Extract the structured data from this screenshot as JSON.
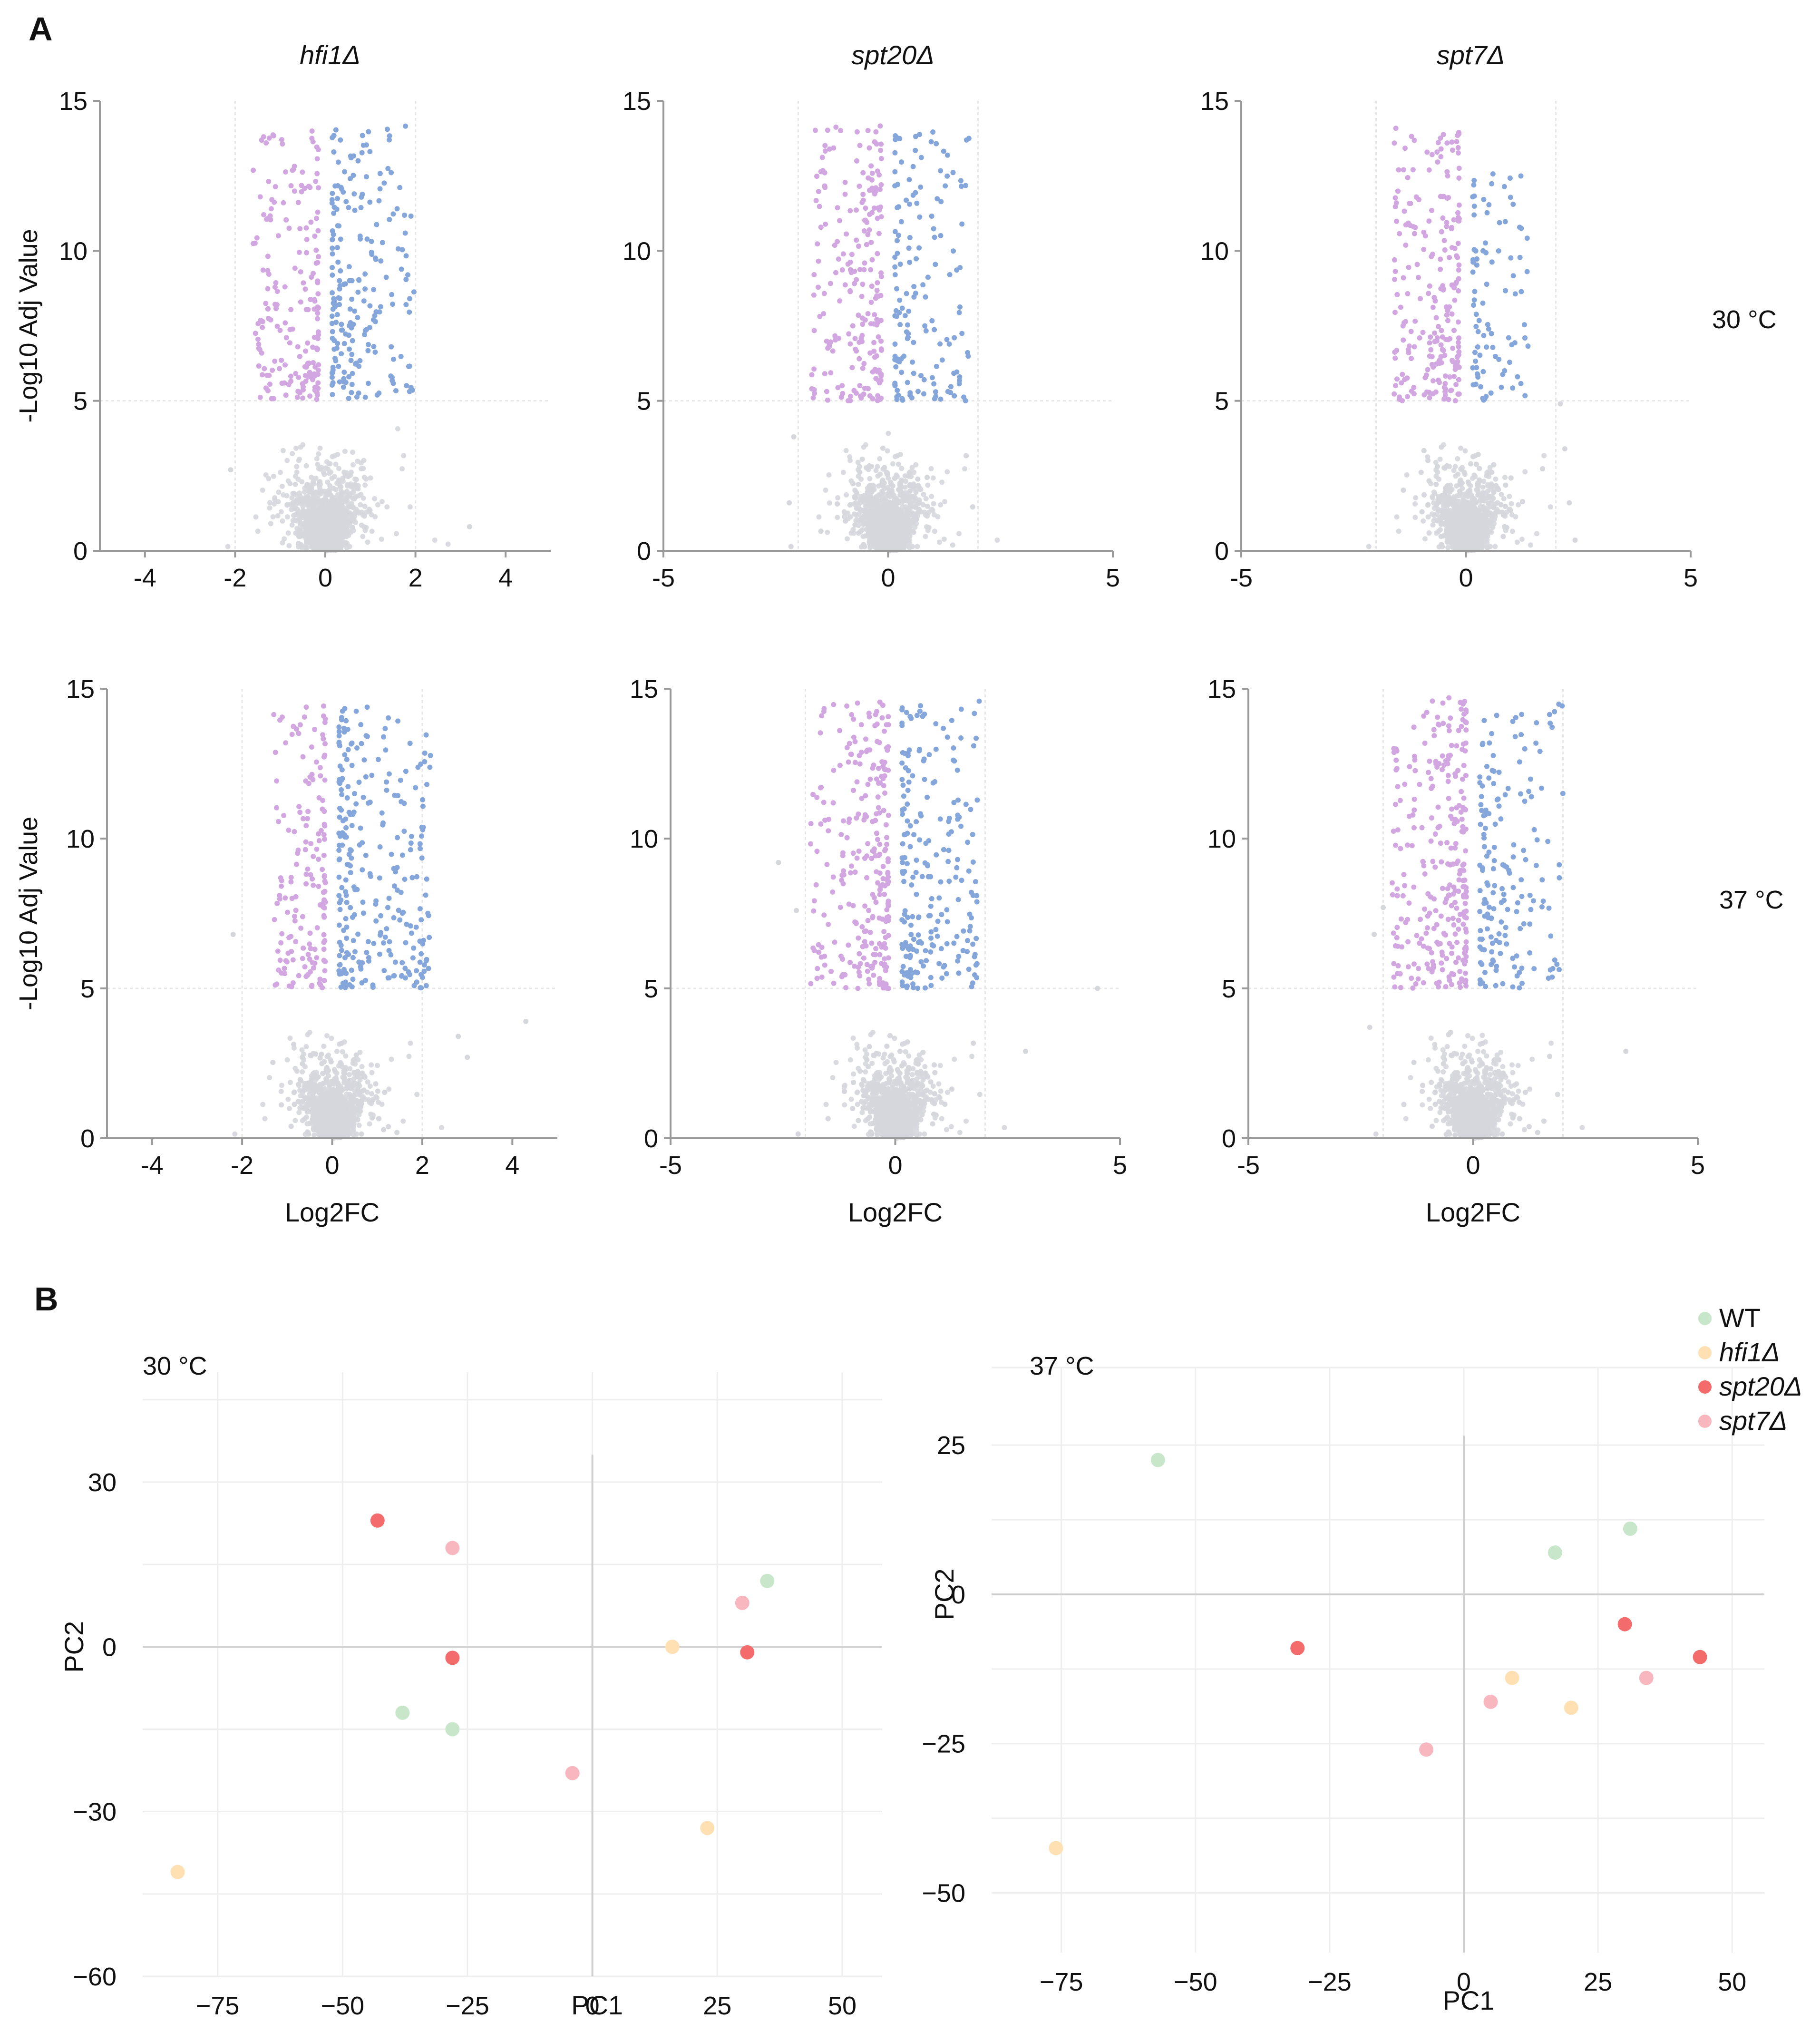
{
  "panel_labels": {
    "a": "A",
    "b": "B"
  },
  "conditions": {
    "row1": "30 °C",
    "row2": "37 °C"
  },
  "volcano_common": {
    "ylabel": "-Log10 Adj Value",
    "xlabel": "Log2FC",
    "ylim": [
      0,
      15
    ],
    "yticks": [
      "0",
      "5",
      "10",
      "15"
    ],
    "colors": {
      "down": "#d2a6e0",
      "up": "#85a6da",
      "ns": "#d6d7dd",
      "axis": "#9a9a9a",
      "grid": "#e6e6e6"
    }
  },
  "pca_common": {
    "xlabel": "PC1",
    "ylabel": "PC2",
    "legend": {
      "position": "top-right",
      "items": [
        {
          "name": "WT",
          "color": "#c8e6c9"
        },
        {
          "name": "hfi1Δ",
          "color": "#ffe0b2"
        },
        {
          "name": "spt20Δ",
          "color": "#f46b6b"
        },
        {
          "name": "spt7Δ",
          "color": "#f8b7bf"
        }
      ]
    }
  },
  "chart_data": [
    {
      "type": "scatter",
      "id": "volcano-hfi1-30",
      "title": "hfi1Δ",
      "condition": "30 °C",
      "xlabel": "",
      "ylabel": "-Log10 Adj Value",
      "xlim": [
        -5,
        5
      ],
      "ylim": [
        0,
        15
      ],
      "xticks": [
        "-4",
        "-2",
        "0",
        "2",
        "4"
      ],
      "xtick_values": [
        -4,
        -2,
        0,
        2,
        4
      ],
      "thresholds": {
        "log2fc": [
          -2,
          2
        ],
        "neglog10p": 5
      },
      "down": {
        "n": 190,
        "xmin": -1.6,
        "xmax": -0.15,
        "ymax": 14
      },
      "up": {
        "n": 210,
        "xmin": 0.15,
        "xmax": 2.0,
        "ymax": 14.2
      },
      "ns_n": 1700,
      "outliers": [
        {
          "x": 3.2,
          "y": 0.8
        },
        {
          "x": -2.1,
          "y": 2.7
        }
      ]
    },
    {
      "type": "scatter",
      "id": "volcano-spt20-30",
      "title": "spt20Δ",
      "condition": "30 °C",
      "xlabel": "",
      "ylabel": "",
      "xlim": [
        -5,
        5
      ],
      "ylim": [
        0,
        15
      ],
      "xticks": [
        "-5",
        "0",
        "5"
      ],
      "xtick_values": [
        -5,
        0,
        5
      ],
      "thresholds": {
        "log2fc": [
          -2,
          2
        ],
        "neglog10p": 5
      },
      "down": {
        "n": 210,
        "xmin": -1.7,
        "xmax": -0.15,
        "ymax": 14.2
      },
      "up": {
        "n": 150,
        "xmin": 0.15,
        "xmax": 1.8,
        "ymax": 14
      },
      "ns_n": 1700,
      "outliers": [
        {
          "x": -2.1,
          "y": 3.8
        },
        {
          "x": -2.2,
          "y": 1.6
        }
      ]
    },
    {
      "type": "scatter",
      "id": "volcano-spt7-30",
      "title": "spt7Δ",
      "condition": "30 °C",
      "xlabel": "",
      "ylabel": "",
      "xlim": [
        -5,
        5
      ],
      "ylim": [
        0,
        15
      ],
      "xticks": [
        "-5",
        "0",
        "5"
      ],
      "xtick_values": [
        -5,
        0,
        5
      ],
      "thresholds": {
        "log2fc": [
          -2,
          2
        ],
        "neglog10p": 5
      },
      "down": {
        "n": 230,
        "xmin": -1.6,
        "xmax": -0.15,
        "ymax": 14.2
      },
      "up": {
        "n": 90,
        "xmin": 0.15,
        "xmax": 1.4,
        "ymax": 12.6
      },
      "ns_n": 1700,
      "outliers": [
        {
          "x": 2.2,
          "y": 3.4
        },
        {
          "x": 2.3,
          "y": 1.6
        },
        {
          "x": 2.1,
          "y": 4.9
        }
      ]
    },
    {
      "type": "scatter",
      "id": "volcano-hfi1-37",
      "title": "",
      "condition": "37 °C",
      "xlabel": "Log2FC",
      "ylabel": "-Log10 Adj Value",
      "xlim": [
        -5,
        5
      ],
      "ylim": [
        0,
        15
      ],
      "xticks": [
        "-4",
        "-2",
        "0",
        "2",
        "4"
      ],
      "xtick_values": [
        -4,
        -2,
        0,
        2,
        4
      ],
      "thresholds": {
        "log2fc": [
          -2,
          2
        ],
        "neglog10p": 5
      },
      "down": {
        "n": 160,
        "xmin": -1.3,
        "xmax": -0.15,
        "ymax": 14.5
      },
      "up": {
        "n": 270,
        "xmin": 0.15,
        "xmax": 2.2,
        "ymax": 14.5
      },
      "ns_n": 1700,
      "outliers": [
        {
          "x": 4.3,
          "y": 3.9
        },
        {
          "x": 2.8,
          "y": 3.4
        },
        {
          "x": 3.0,
          "y": 2.7
        },
        {
          "x": -2.2,
          "y": 6.8
        }
      ]
    },
    {
      "type": "scatter",
      "id": "volcano-spt20-37",
      "title": "",
      "condition": "37 °C",
      "xlabel": "Log2FC",
      "ylabel": "",
      "xlim": [
        -5,
        5
      ],
      "ylim": [
        0,
        15
      ],
      "xticks": [
        "-5",
        "0",
        "5"
      ],
      "xtick_values": [
        -5,
        0,
        5
      ],
      "thresholds": {
        "log2fc": [
          -2,
          2
        ],
        "neglog10p": 5
      },
      "down": {
        "n": 270,
        "xmin": -1.9,
        "xmax": -0.15,
        "ymax": 14.6
      },
      "up": {
        "n": 220,
        "xmin": 0.15,
        "xmax": 1.9,
        "ymax": 14.6
      },
      "ns_n": 1700,
      "outliers": [
        {
          "x": 4.5,
          "y": 5.0
        },
        {
          "x": 2.9,
          "y": 2.9
        },
        {
          "x": -2.6,
          "y": 9.2
        },
        {
          "x": -2.2,
          "y": 7.6
        }
      ]
    },
    {
      "type": "scatter",
      "id": "volcano-spt7-37",
      "title": "",
      "condition": "37 °C",
      "xlabel": "Log2FC",
      "ylabel": "",
      "xlim": [
        -5,
        5
      ],
      "ylim": [
        0,
        15
      ],
      "xticks": [
        "-5",
        "0",
        "5"
      ],
      "xtick_values": [
        -5,
        0,
        5
      ],
      "thresholds": {
        "log2fc": [
          -2,
          2
        ],
        "neglog10p": 5
      },
      "down": {
        "n": 290,
        "xmin": -1.8,
        "xmax": -0.15,
        "ymax": 14.7
      },
      "up": {
        "n": 170,
        "xmin": 0.15,
        "xmax": 2.0,
        "ymax": 14.5
      },
      "ns_n": 1700,
      "outliers": [
        {
          "x": 3.4,
          "y": 2.9
        },
        {
          "x": -2.3,
          "y": 3.7
        },
        {
          "x": -2.0,
          "y": 7.7
        },
        {
          "x": -2.2,
          "y": 6.8
        }
      ]
    },
    {
      "type": "scatter",
      "id": "pca-30",
      "title": "30 °C",
      "xlabel": "PC1",
      "ylabel": "PC2",
      "xlim": [
        -90,
        58
      ],
      "ylim": [
        -60,
        50
      ],
      "xticks": [
        "−75",
        "−50",
        "−25",
        "0",
        "25",
        "50"
      ],
      "xtick_values": [
        -75,
        -50,
        -25,
        0,
        25,
        50
      ],
      "yticks": [
        "30",
        "0",
        "−30",
        "−60"
      ],
      "ytick_values": [
        30,
        0,
        -30,
        -60
      ],
      "grid_x": [
        -75,
        -50,
        -25,
        0,
        25,
        50
      ],
      "grid_y": [
        45,
        30,
        15,
        0,
        -15,
        -30,
        -45,
        -60
      ],
      "series": [
        {
          "name": "WT",
          "points": [
            {
              "x": 35,
              "y": 12
            },
            {
              "x": -38,
              "y": -12
            },
            {
              "x": -28,
              "y": -15
            }
          ]
        },
        {
          "name": "hfi1Δ",
          "points": [
            {
              "x": 16,
              "y": 0
            },
            {
              "x": 23,
              "y": -33
            },
            {
              "x": -83,
              "y": -41
            }
          ]
        },
        {
          "name": "spt20Δ",
          "points": [
            {
              "x": -43,
              "y": 23
            },
            {
              "x": -28,
              "y": -2
            },
            {
              "x": 31,
              "y": -1
            }
          ]
        },
        {
          "name": "spt7Δ",
          "points": [
            {
              "x": -28,
              "y": 18
            },
            {
              "x": 30,
              "y": 8
            },
            {
              "x": -4,
              "y": -23
            }
          ]
        }
      ]
    },
    {
      "type": "scatter",
      "id": "pca-37",
      "title": "37 °C",
      "xlabel": "PC1",
      "ylabel": "PC2",
      "xlim": [
        -88,
        56
      ],
      "ylim": [
        -60,
        38
      ],
      "xticks": [
        "−75",
        "−50",
        "−25",
        "0",
        "25",
        "50"
      ],
      "xtick_values": [
        -75,
        -50,
        -25,
        0,
        25,
        50
      ],
      "yticks": [
        "25",
        "0",
        "−25",
        "−50"
      ],
      "ytick_values": [
        25,
        0,
        -25,
        -50
      ],
      "grid_x": [
        -75,
        -50,
        -25,
        0,
        25,
        50
      ],
      "grid_y": [
        38,
        25,
        12.5,
        0,
        -12.5,
        -25,
        -37.5,
        -50
      ],
      "series": [
        {
          "name": "WT",
          "points": [
            {
              "x": -57,
              "y": 22.5
            },
            {
              "x": 17,
              "y": 7
            },
            {
              "x": 31,
              "y": 11
            }
          ]
        },
        {
          "name": "hfi1Δ",
          "points": [
            {
              "x": 9,
              "y": -14
            },
            {
              "x": 20,
              "y": -19
            },
            {
              "x": -76,
              "y": -42.5
            }
          ]
        },
        {
          "name": "spt20Δ",
          "points": [
            {
              "x": -31,
              "y": -9
            },
            {
              "x": 30,
              "y": -5
            },
            {
              "x": 44,
              "y": -10.5
            }
          ]
        },
        {
          "name": "spt7Δ",
          "points": [
            {
              "x": 5,
              "y": -18
            },
            {
              "x": 34,
              "y": -14
            },
            {
              "x": -7,
              "y": -26
            }
          ]
        }
      ]
    }
  ]
}
